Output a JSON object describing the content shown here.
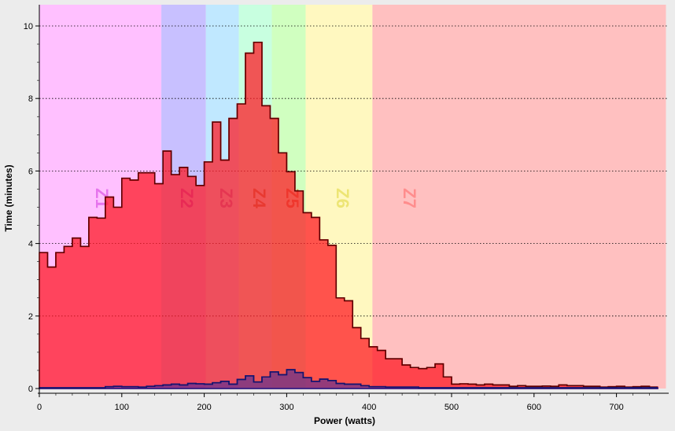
{
  "chart_data": {
    "type": "area",
    "xlabel": "Power (watts)",
    "ylabel": "Time (minutes)",
    "xlim": [
      0,
      760
    ],
    "ylim": [
      0,
      10.6
    ],
    "x_ticks": [
      0,
      100,
      200,
      300,
      400,
      500,
      600,
      700
    ],
    "y_ticks": [
      0,
      2,
      4,
      6,
      8,
      10
    ],
    "grid": "horizontal dotted",
    "bin_width": 10,
    "zones": [
      {
        "label": "Z1",
        "from": 0,
        "to": 148,
        "color": "#ffc0ff",
        "label_color": "#e060e8"
      },
      {
        "label": "Z2",
        "from": 148,
        "to": 202,
        "color": "#c8c0ff",
        "label_color": "#a850d8"
      },
      {
        "label": "Z3",
        "from": 202,
        "to": 242,
        "color": "#c0e8ff",
        "label_color": "#9878c8"
      },
      {
        "label": "Z4",
        "from": 242,
        "to": 282,
        "color": "#c8ffe0",
        "label_color": "#a88040"
      },
      {
        "label": "Z5",
        "from": 282,
        "to": 323,
        "color": "#d0ffc0",
        "label_color": "#c07838"
      },
      {
        "label": "Z6",
        "from": 323,
        "to": 404,
        "color": "#fff8c0",
        "label_color": "#e8e060"
      },
      {
        "label": "Z7",
        "from": 404,
        "to": 760,
        "color": "#ffc0c0",
        "label_color": "#ff8080"
      }
    ],
    "series": [
      {
        "color": "#ff2020",
        "fill": "rgba(255,20,30,0.72)",
        "values": [
          3.75,
          3.35,
          3.75,
          3.92,
          4.15,
          3.92,
          4.72,
          4.7,
          5.28,
          5.0,
          5.8,
          5.75,
          5.95,
          5.95,
          5.65,
          6.55,
          5.9,
          6.1,
          5.85,
          5.6,
          6.25,
          7.35,
          6.3,
          7.45,
          7.85,
          9.25,
          9.55,
          7.8,
          7.45,
          6.5,
          5.98,
          5.45,
          4.85,
          4.72,
          4.1,
          3.95,
          2.5,
          2.42,
          1.68,
          1.38,
          1.15,
          1.05,
          0.82,
          0.82,
          0.65,
          0.58,
          0.55,
          0.58,
          0.68,
          0.32,
          0.12,
          0.13,
          0.12,
          0.1,
          0.12,
          0.1,
          0.1,
          0.06,
          0.08,
          0.06,
          0.06,
          0.07,
          0.06,
          0.1,
          0.08,
          0.08,
          0.06,
          0.06,
          0.04,
          0.05,
          0.06,
          0.04,
          0.05,
          0.06,
          0.04
        ]
      },
      {
        "color": "#1a1a8a",
        "fill": "rgba(60,40,160,0.55)",
        "values": [
          0.02,
          0.02,
          0.02,
          0.02,
          0.02,
          0.02,
          0.02,
          0.02,
          0.05,
          0.06,
          0.05,
          0.05,
          0.04,
          0.06,
          0.08,
          0.1,
          0.12,
          0.1,
          0.14,
          0.13,
          0.12,
          0.16,
          0.2,
          0.12,
          0.25,
          0.35,
          0.18,
          0.32,
          0.46,
          0.38,
          0.52,
          0.44,
          0.3,
          0.2,
          0.26,
          0.22,
          0.14,
          0.12,
          0.12,
          0.08,
          0.05,
          0.05,
          0.04,
          0.04,
          0.04,
          0.04,
          0.02,
          0.02,
          0.02,
          0.02,
          0.02,
          0.02,
          0.02,
          0.02,
          0.02,
          0.02,
          0.02,
          0.02,
          0.02,
          0.02,
          0.02,
          0.02,
          0.02,
          0.02,
          0.02,
          0.02,
          0.02,
          0.02,
          0.02,
          0.02,
          0.02,
          0.02,
          0.02,
          0.02,
          0.02
        ]
      }
    ]
  }
}
